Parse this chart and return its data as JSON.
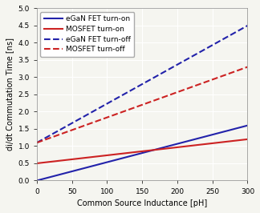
{
  "title": "",
  "xlabel": "Common Source Inductance [pH]",
  "ylabel": "di/dt Commutation Time [ns]",
  "xlim": [
    0,
    300
  ],
  "ylim": [
    0,
    5
  ],
  "xticks": [
    0,
    50,
    100,
    150,
    200,
    250,
    300
  ],
  "yticks": [
    0,
    0.5,
    1.0,
    1.5,
    2.0,
    2.5,
    3.0,
    3.5,
    4.0,
    4.5,
    5.0
  ],
  "series": [
    {
      "label": "eGaN FET turn-on",
      "color": "#2222aa",
      "linestyle": "solid",
      "linewidth": 1.5,
      "x0": 0,
      "y0": 0.0,
      "slope": 0.00533
    },
    {
      "label": "MOSFET turn-on",
      "color": "#cc2222",
      "linestyle": "solid",
      "linewidth": 1.5,
      "x0": 0,
      "y0": 0.5,
      "slope": 0.00233
    },
    {
      "label": "eGaN FET turn-off",
      "color": "#2222aa",
      "linestyle": "dashed",
      "linewidth": 1.5,
      "x0": 0,
      "y0": 1.1,
      "slope": 0.01133
    },
    {
      "label": "MOSFET turn-off",
      "color": "#cc2222",
      "linestyle": "dashed",
      "linewidth": 1.5,
      "x0": 0,
      "y0": 1.1,
      "slope": 0.00733
    }
  ],
  "background_color": "#f5f5f0",
  "grid_color": "#ffffff",
  "legend_fontsize": 6.5,
  "axis_fontsize": 7,
  "tick_fontsize": 6.5
}
